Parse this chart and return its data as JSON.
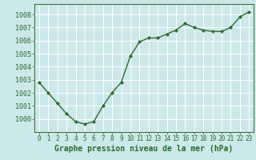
{
  "x": [
    0,
    1,
    2,
    3,
    4,
    5,
    6,
    7,
    8,
    9,
    10,
    11,
    12,
    13,
    14,
    15,
    16,
    17,
    18,
    19,
    20,
    21,
    22,
    23
  ],
  "y": [
    1002.8,
    1002.0,
    1001.2,
    1000.4,
    999.8,
    999.6,
    999.8,
    1001.0,
    1002.0,
    1002.8,
    1004.8,
    1005.9,
    1006.2,
    1006.2,
    1006.5,
    1006.8,
    1007.3,
    1007.0,
    1006.8,
    1006.7,
    1006.7,
    1007.0,
    1007.8,
    1008.2
  ],
  "ylim": [
    999.0,
    1008.8
  ],
  "yticks": [
    1000,
    1001,
    1002,
    1003,
    1004,
    1005,
    1006,
    1007,
    1008
  ],
  "xlim": [
    -0.5,
    23.5
  ],
  "xticks": [
    0,
    1,
    2,
    3,
    4,
    5,
    6,
    7,
    8,
    9,
    10,
    11,
    12,
    13,
    14,
    15,
    16,
    17,
    18,
    19,
    20,
    21,
    22,
    23
  ],
  "xlabel": "Graphe pression niveau de la mer (hPa)",
  "line_color": "#2d6a2d",
  "marker": "D",
  "marker_size": 2.0,
  "line_width": 1.0,
  "bg_color": "#cce8ea",
  "grid_color": "#ffffff",
  "tick_color": "#2d6a2d",
  "label_color": "#2d6a2d",
  "xlabel_fontsize": 7.0,
  "xlabel_fontweight": "bold",
  "ytick_fontsize": 6.0,
  "xtick_fontsize": 5.5
}
